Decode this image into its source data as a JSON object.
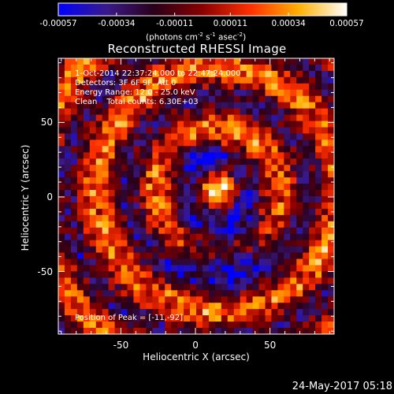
{
  "colorbar": {
    "tick_labels": [
      "-0.00057",
      "-0.00034",
      "-0.00011",
      "0.00011",
      "0.00034",
      "0.00057"
    ],
    "units_text": "(photons cm",
    "units_exp1": "-2",
    "units_mid": " s",
    "units_exp2": "-1",
    "units_mid2": " asec",
    "units_exp3": "-2",
    "units_end": ")",
    "colors": [
      "#0000ff",
      "#3a1a8a",
      "#2a0018",
      "#8a0000",
      "#ff3000",
      "#ffb000",
      "#ffffff"
    ]
  },
  "chart_data": {
    "type": "heatmap",
    "title": "Reconstructed RHESSI Image",
    "xlabel": "Heliocentric X (arcsec)",
    "ylabel": "Heliocentric Y (arcsec)",
    "xlim": [
      -92,
      93
    ],
    "ylim": [
      -92,
      93
    ],
    "x_ticks": [
      "-50",
      "0",
      "50"
    ],
    "y_ticks": [
      "50",
      "0",
      "-50"
    ],
    "x_tick_values": [
      -50,
      0,
      50
    ],
    "y_tick_values": [
      50,
      0,
      -50
    ],
    "colorbar_range": [
      -0.00057,
      0.00057
    ],
    "colormap": "blue-purple-black-red-yellow-white",
    "peak_position": [
      -11,
      -92
    ],
    "annotations": {
      "time_range": "1-Oct-2014 22:37:24.000 to 22:47:24.000",
      "detectors": "Detectors: 3F 6F 9F, Att 0",
      "energy_range": "Energy Range: 12.0 - 25.0 keV",
      "method": "Clean",
      "total_counts": "Total counts: 6.30E+03",
      "peak_text": "Position of Peak = [-11,-92]"
    }
  },
  "footer": {
    "date": "24-May-2017 05:18"
  }
}
